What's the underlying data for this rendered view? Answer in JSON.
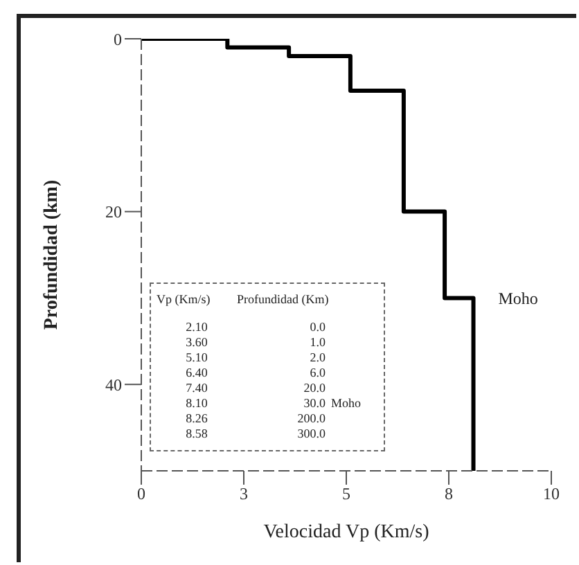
{
  "chart_data": {
    "type": "line",
    "xlabel": "Velocidad Vp  (Km/s)",
    "ylabel": "Profundidad  (km)",
    "x": [
      0,
      2.1,
      2.1,
      3.6,
      3.6,
      5.1,
      5.1,
      6.4,
      6.4,
      7.4,
      7.4,
      8.1,
      8.1
    ],
    "series": [
      {
        "color": "#000000",
        "values": [
          0,
          0,
          1,
          1,
          2,
          2,
          6,
          6,
          20,
          20,
          30,
          30,
          50
        ]
      }
    ],
    "xlim": [
      0,
      10
    ],
    "xticks": [
      0,
      {
        "value": 2.5,
        "label": "3"
      },
      5,
      {
        "value": 7.5,
        "label": "8"
      },
      10
    ],
    "ylim": [
      50,
      0
    ],
    "yticks": [
      0,
      20,
      40
    ],
    "grid": false,
    "marker": "none",
    "line_style": "solid",
    "annotations": [
      {
        "text": "Moho",
        "x": 8.1,
        "y": 30
      },
      "Vp (Km/s)\tProfundidad (Km)\t",
      "2.10\t0.0\t",
      "3.60\t1.0\t",
      "5.10\t2.0\t",
      "6.40\t6.0\t",
      "7.40\t20.0\t",
      "8.10\t30.0\tMoho",
      "8.26\t200.0\t",
      "8.58\t300.0\t"
    ]
  }
}
